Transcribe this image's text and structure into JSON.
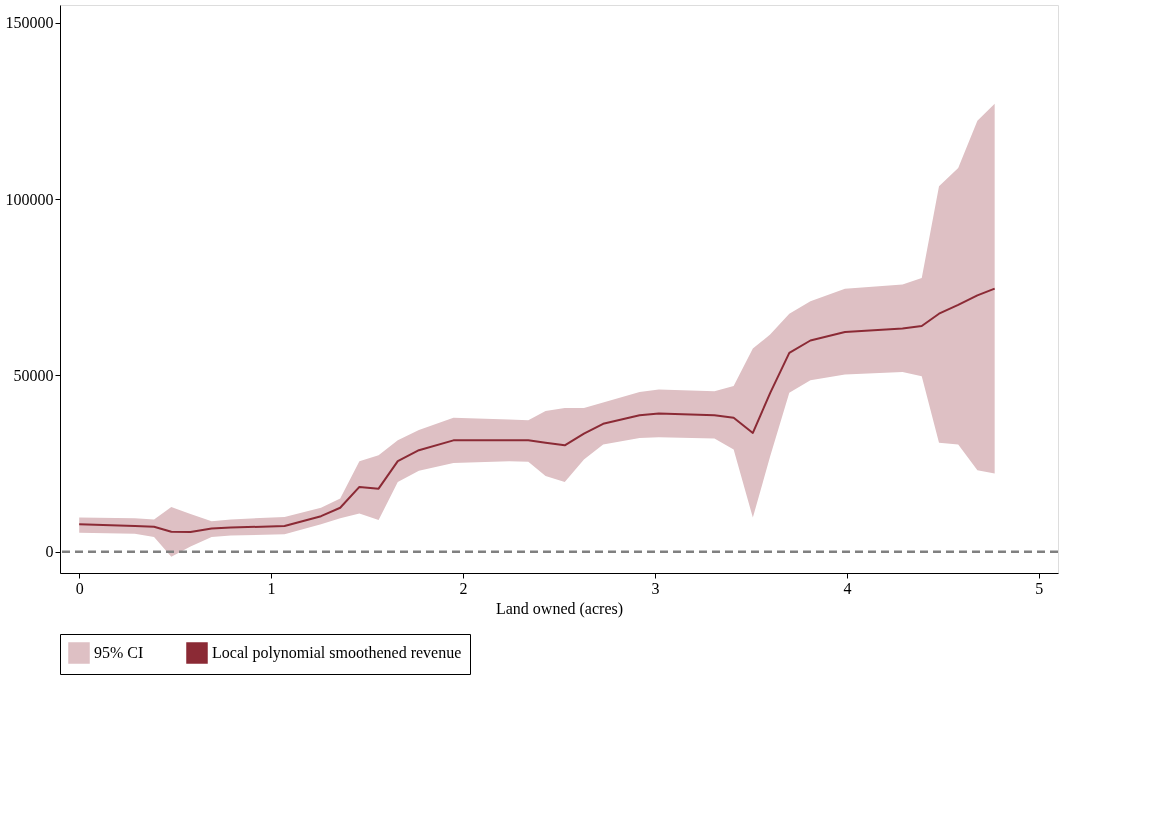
{
  "chart_data": {
    "type": "line",
    "xlabel": "Land owned (acres)",
    "x": [
      0,
      0.29,
      0.39,
      0.48,
      0.58,
      0.69,
      0.79,
      1.07,
      1.26,
      1.36,
      1.46,
      1.56,
      1.66,
      1.77,
      1.95,
      2.24,
      2.34,
      2.43,
      2.53,
      2.63,
      2.73,
      2.92,
      3.02,
      3.31,
      3.41,
      3.51,
      3.6,
      3.7,
      3.81,
      3.99,
      4.29,
      4.39,
      4.48,
      4.58,
      4.68,
      4.77
    ],
    "series": [
      {
        "name": "95% CI",
        "type": "area",
        "color": "#dec0c4",
        "values": [
          null,
          null,
          null,
          null,
          null,
          null,
          null,
          null,
          null,
          null,
          null,
          null,
          null,
          null,
          null,
          null,
          null,
          null,
          null,
          null,
          null,
          null,
          null,
          null,
          null,
          null,
          null,
          null,
          null,
          null,
          null,
          null,
          null,
          null,
          null,
          null
        ]
      },
      {
        "name": "Local polynomial smoothened revenue",
        "color": "#8b2a35",
        "values": [
          7800,
          7300,
          7100,
          5700,
          5600,
          6600,
          6900,
          7300,
          10100,
          12500,
          18400,
          17900,
          25700,
          28800,
          31600,
          31600,
          31600,
          30900,
          30200,
          33500,
          36300,
          38700,
          39200,
          38700,
          38000,
          33700,
          45000,
          56400,
          59900,
          62300,
          63300,
          64000,
          67500,
          70000,
          72700,
          74600
        ],
        "lower": [
          5400,
          5100,
          4200,
          -1400,
          1500,
          4200,
          4600,
          5000,
          7800,
          9500,
          10900,
          9000,
          19800,
          23000,
          25200,
          25700,
          25500,
          21500,
          19800,
          26200,
          30400,
          32300,
          32500,
          32100,
          29000,
          9700,
          27000,
          45100,
          48600,
          50300,
          51000,
          49800,
          30900,
          30400,
          23100,
          22200
        ],
        "upper": [
          9700,
          9500,
          9200,
          12700,
          10700,
          8700,
          9200,
          9900,
          12500,
          15100,
          25700,
          27400,
          31600,
          34500,
          38000,
          37500,
          37300,
          39900,
          40800,
          40800,
          42300,
          45300,
          46000,
          45500,
          47000,
          57600,
          61600,
          67500,
          71000,
          74600,
          75800,
          77600,
          103600,
          108800,
          122200,
          127000
        ]
      }
    ],
    "xlim": [
      -0.1,
      5.1
    ],
    "xticks": [
      0,
      1,
      2,
      3,
      4,
      5
    ],
    "ylim": [
      -6000,
      155000
    ],
    "yticks": [
      0,
      50000,
      100000,
      150000
    ],
    "ref_lines": [
      {
        "axis": "y",
        "value": 0,
        "color": "#808080",
        "line_style": "dashed"
      }
    ],
    "grid": false,
    "legend": "bottom",
    "marker": "none",
    "line_style": "solid"
  }
}
